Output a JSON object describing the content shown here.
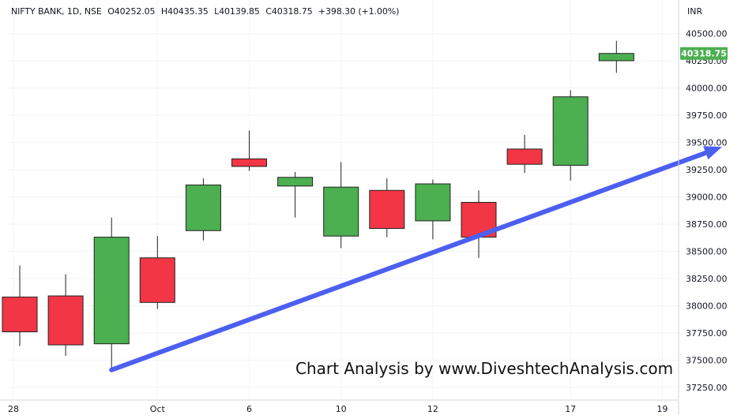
{
  "header": {
    "symbol": "NIFTY BANK, 1D, NSE",
    "open": "O40252.05",
    "high": "H40435.35",
    "low": "L40139.85",
    "close": "C40318.75",
    "change": "+398.30 (+1.00%)"
  },
  "currency": "INR",
  "last_price_label": "40318.75",
  "watermark": "Chart Analysis by www.DiveshtechAnalysis.com",
  "colors": {
    "up": "#4caf50",
    "down": "#f23645",
    "arrow": "#4c5ff0",
    "grid": "#f0f3fa",
    "text": "#131722"
  },
  "chart_data": {
    "type": "candlestick",
    "ylim": [
      37140,
      40810
    ],
    "y_ticks": [
      "40500.00",
      "40250.00",
      "40000.00",
      "39750.00",
      "39500.00",
      "39250.00",
      "39000.00",
      "38750.00",
      "38500.00",
      "38250.00",
      "38000.00",
      "37750.00",
      "37500.00",
      "37250.00"
    ],
    "x_ticks": [
      "28",
      "Oct",
      "6",
      "10",
      "12",
      "17",
      "19"
    ],
    "x_tick_positions": [
      0,
      3,
      5,
      7,
      9,
      12,
      14
    ],
    "candles": [
      {
        "i": 0,
        "open": 38080,
        "high": 38370,
        "low": 37630,
        "close": 37760
      },
      {
        "i": 1,
        "open": 38090,
        "high": 38290,
        "low": 37540,
        "close": 37640
      },
      {
        "i": 2,
        "open": 37650,
        "high": 38810,
        "low": 37430,
        "close": 38630
      },
      {
        "i": 3,
        "open": 38440,
        "high": 38640,
        "low": 37970,
        "close": 38030
      },
      {
        "i": 4,
        "open": 38690,
        "high": 39170,
        "low": 38600,
        "close": 39110
      },
      {
        "i": 5,
        "open": 39350,
        "high": 39610,
        "low": 39240,
        "close": 39280
      },
      {
        "i": 6,
        "open": 39100,
        "high": 39230,
        "low": 38810,
        "close": 39180
      },
      {
        "i": 7,
        "open": 38640,
        "high": 39320,
        "low": 38530,
        "close": 39090
      },
      {
        "i": 8,
        "open": 39060,
        "high": 39170,
        "low": 38630,
        "close": 38710
      },
      {
        "i": 9,
        "open": 38780,
        "high": 39160,
        "low": 38610,
        "close": 39120
      },
      {
        "i": 10,
        "open": 38950,
        "high": 39060,
        "low": 38440,
        "close": 38630
      },
      {
        "i": 11,
        "open": 39440,
        "high": 39570,
        "low": 39220,
        "close": 39300
      },
      {
        "i": 12,
        "open": 39290,
        "high": 39980,
        "low": 39150,
        "close": 39920
      },
      {
        "i": 13,
        "open": 40252.05,
        "high": 40435.35,
        "low": 40139.85,
        "close": 40318.75
      }
    ],
    "trend_arrow": {
      "from": {
        "i": 2,
        "value": 37410
      },
      "to": {
        "i": 15.3,
        "value": 39460
      }
    }
  }
}
